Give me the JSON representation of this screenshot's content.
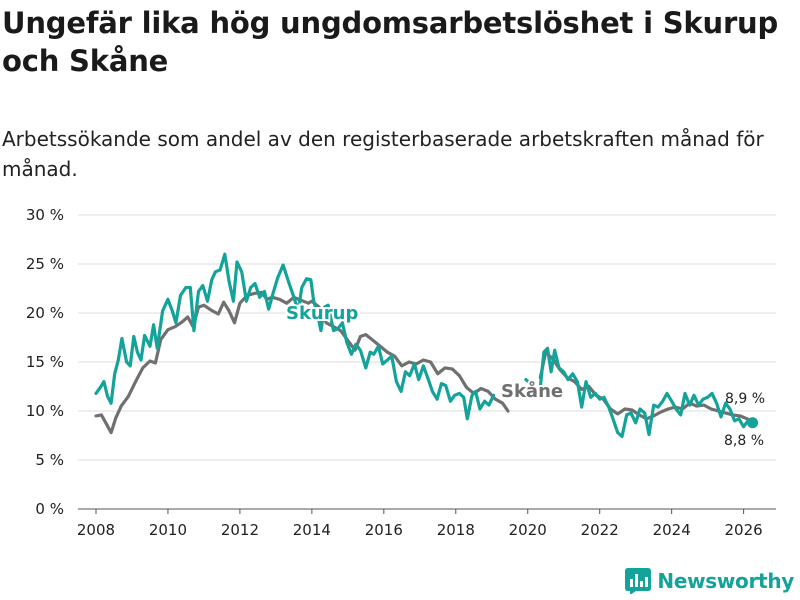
{
  "title": "Ungefär lika hög ungdomsarbetslöshet i Skurup och Skåne",
  "subtitle": "Arbetssökande som andel av den registerbaserade arbetskraften månad för månad.",
  "brand": "Newsworthy",
  "colors": {
    "skurup": "#14a39a",
    "skane": "#707070",
    "grid": "#dddddd",
    "axis": "#555555",
    "brand": "#14a39a"
  },
  "icons": {
    "logo": "bar-chart-logo-icon"
  },
  "chart_data": {
    "type": "line",
    "title": "Ungefär lika hög ungdomsarbetslöshet i Skurup och Skåne",
    "xlabel": "",
    "ylabel": "",
    "xlim": [
      2007.5,
      2026.9
    ],
    "ylim": [
      0,
      30
    ],
    "yticks": [
      0,
      5,
      10,
      15,
      20,
      25,
      30
    ],
    "ytick_labels": [
      "0 %",
      "5 %",
      "10 %",
      "15 %",
      "20 %",
      "25 %",
      "30 %"
    ],
    "xticks": [
      2008,
      2010,
      2012,
      2014,
      2016,
      2018,
      2020,
      2022,
      2024,
      2026
    ],
    "xtick_labels": [
      "2008",
      "2010",
      "2012",
      "2014",
      "2016",
      "2018",
      "2020",
      "2022",
      "2024",
      "2026"
    ],
    "grid": true,
    "series": [
      {
        "name": "Skåne",
        "label": "Skåne",
        "end_label": "8,9 %",
        "points": [
          [
            2008.0,
            9.5
          ],
          [
            2008.15,
            9.6
          ],
          [
            2008.3,
            8.6
          ],
          [
            2008.42,
            7.8
          ],
          [
            2008.55,
            9.3
          ],
          [
            2008.7,
            10.5
          ],
          [
            2008.9,
            11.5
          ],
          [
            2009.1,
            13.0
          ],
          [
            2009.3,
            14.4
          ],
          [
            2009.5,
            15.1
          ],
          [
            2009.65,
            14.9
          ],
          [
            2009.8,
            17.3
          ],
          [
            2010.0,
            18.3
          ],
          [
            2010.2,
            18.6
          ],
          [
            2010.4,
            19.1
          ],
          [
            2010.55,
            19.6
          ],
          [
            2010.7,
            18.6
          ],
          [
            2010.85,
            20.6
          ],
          [
            2011.0,
            20.8
          ],
          [
            2011.2,
            20.3
          ],
          [
            2011.4,
            19.9
          ],
          [
            2011.55,
            21.1
          ],
          [
            2011.7,
            20.2
          ],
          [
            2011.85,
            19.0
          ],
          [
            2012.0,
            21.0
          ],
          [
            2012.2,
            21.8
          ],
          [
            2012.4,
            22.0
          ],
          [
            2012.6,
            22.1
          ],
          [
            2012.75,
            21.4
          ],
          [
            2012.9,
            21.6
          ],
          [
            2013.1,
            21.4
          ],
          [
            2013.3,
            21.0
          ],
          [
            2013.5,
            21.6
          ],
          [
            2013.7,
            21.3
          ],
          [
            2013.9,
            21.0
          ],
          [
            2014.0,
            21.2
          ],
          [
            2014.2,
            20.6
          ],
          [
            2014.4,
            19.0
          ],
          [
            2014.6,
            18.6
          ],
          [
            2014.8,
            18.2
          ],
          [
            2015.0,
            17.2
          ],
          [
            2015.2,
            16.2
          ],
          [
            2015.35,
            17.6
          ],
          [
            2015.5,
            17.8
          ],
          [
            2015.7,
            17.2
          ],
          [
            2015.9,
            16.6
          ],
          [
            2016.1,
            16.0
          ],
          [
            2016.3,
            15.6
          ],
          [
            2016.5,
            14.6
          ],
          [
            2016.7,
            15.0
          ],
          [
            2016.9,
            14.8
          ],
          [
            2017.1,
            15.2
          ],
          [
            2017.3,
            15.0
          ],
          [
            2017.5,
            13.8
          ],
          [
            2017.7,
            14.4
          ],
          [
            2017.9,
            14.3
          ],
          [
            2018.1,
            13.6
          ],
          [
            2018.3,
            12.4
          ],
          [
            2018.5,
            11.8
          ],
          [
            2018.7,
            12.3
          ],
          [
            2018.9,
            12.0
          ],
          [
            2019.1,
            11.2
          ],
          [
            2019.3,
            10.8
          ],
          [
            2019.45,
            10.0
          ]
        ],
        "points_b": [
          [
            2020.35,
            13.4
          ],
          [
            2020.5,
            16.0
          ],
          [
            2020.7,
            15.3
          ],
          [
            2020.9,
            14.2
          ],
          [
            2021.1,
            13.4
          ],
          [
            2021.3,
            13.0
          ],
          [
            2021.5,
            12.2
          ],
          [
            2021.7,
            12.5
          ],
          [
            2021.9,
            11.6
          ],
          [
            2022.1,
            11.2
          ],
          [
            2022.3,
            10.2
          ],
          [
            2022.5,
            9.7
          ],
          [
            2022.7,
            10.2
          ],
          [
            2022.9,
            10.1
          ],
          [
            2023.1,
            9.6
          ],
          [
            2023.3,
            9.2
          ],
          [
            2023.5,
            9.5
          ],
          [
            2023.7,
            9.9
          ],
          [
            2023.9,
            10.2
          ],
          [
            2024.1,
            10.4
          ],
          [
            2024.3,
            10.2
          ],
          [
            2024.5,
            10.8
          ],
          [
            2024.7,
            10.5
          ],
          [
            2024.9,
            10.6
          ],
          [
            2025.1,
            10.2
          ],
          [
            2025.3,
            10.0
          ],
          [
            2025.5,
            9.8
          ],
          [
            2025.7,
            9.6
          ],
          [
            2025.9,
            9.5
          ],
          [
            2026.1,
            9.2
          ],
          [
            2026.25,
            8.9
          ]
        ]
      },
      {
        "name": "Skurup",
        "label": "Skurup",
        "end_label": "8,8 %",
        "points": [
          [
            2008.0,
            11.8
          ],
          [
            2008.12,
            12.4
          ],
          [
            2008.22,
            13.0
          ],
          [
            2008.32,
            11.5
          ],
          [
            2008.42,
            10.8
          ],
          [
            2008.52,
            13.8
          ],
          [
            2008.62,
            15.2
          ],
          [
            2008.72,
            17.4
          ],
          [
            2008.85,
            15.0
          ],
          [
            2008.95,
            14.6
          ],
          [
            2009.05,
            17.6
          ],
          [
            2009.15,
            16.0
          ],
          [
            2009.25,
            15.2
          ],
          [
            2009.35,
            17.7
          ],
          [
            2009.5,
            16.6
          ],
          [
            2009.6,
            18.8
          ],
          [
            2009.7,
            16.4
          ],
          [
            2009.85,
            20.2
          ],
          [
            2010.0,
            21.4
          ],
          [
            2010.12,
            20.2
          ],
          [
            2010.22,
            19.0
          ],
          [
            2010.35,
            21.8
          ],
          [
            2010.5,
            22.6
          ],
          [
            2010.62,
            22.6
          ],
          [
            2010.72,
            18.2
          ],
          [
            2010.85,
            22.2
          ],
          [
            2010.97,
            22.8
          ],
          [
            2011.1,
            21.2
          ],
          [
            2011.22,
            23.4
          ],
          [
            2011.32,
            24.2
          ],
          [
            2011.45,
            24.4
          ],
          [
            2011.58,
            26.0
          ],
          [
            2011.7,
            23.2
          ],
          [
            2011.82,
            21.2
          ],
          [
            2011.92,
            25.2
          ],
          [
            2012.05,
            24.2
          ],
          [
            2012.18,
            21.2
          ],
          [
            2012.3,
            22.6
          ],
          [
            2012.42,
            23.0
          ],
          [
            2012.55,
            21.6
          ],
          [
            2012.68,
            22.2
          ],
          [
            2012.8,
            20.4
          ],
          [
            2012.92,
            22.0
          ],
          [
            2013.05,
            23.6
          ],
          [
            2013.2,
            24.9
          ],
          [
            2013.35,
            23.2
          ],
          [
            2013.5,
            21.6
          ],
          [
            2013.62,
            20.2
          ],
          [
            2013.72,
            22.6
          ],
          [
            2013.85,
            23.5
          ],
          [
            2013.97,
            23.4
          ],
          [
            2014.05,
            21.2
          ],
          [
            2014.15,
            20.0
          ],
          [
            2014.25,
            18.2
          ],
          [
            2014.35,
            20.6
          ],
          [
            2014.45,
            20.8
          ],
          [
            2014.6,
            18.2
          ],
          [
            2014.72,
            18.4
          ],
          [
            2014.85,
            19.0
          ],
          [
            2014.97,
            17.0
          ],
          [
            2015.1,
            15.8
          ],
          [
            2015.22,
            16.8
          ],
          [
            2015.35,
            16.2
          ],
          [
            2015.5,
            14.4
          ],
          [
            2015.62,
            16.0
          ],
          [
            2015.72,
            15.8
          ],
          [
            2015.85,
            16.6
          ],
          [
            2015.97,
            14.8
          ],
          [
            2016.1,
            15.2
          ],
          [
            2016.22,
            15.6
          ],
          [
            2016.35,
            13.0
          ],
          [
            2016.48,
            12.0
          ],
          [
            2016.6,
            14.0
          ],
          [
            2016.72,
            13.6
          ],
          [
            2016.85,
            14.8
          ],
          [
            2016.97,
            13.2
          ],
          [
            2017.1,
            14.6
          ],
          [
            2017.22,
            13.4
          ],
          [
            2017.35,
            12.0
          ],
          [
            2017.48,
            11.2
          ],
          [
            2017.6,
            12.8
          ],
          [
            2017.72,
            12.6
          ],
          [
            2017.85,
            11.0
          ],
          [
            2017.97,
            11.6
          ],
          [
            2018.1,
            11.8
          ],
          [
            2018.22,
            11.4
          ],
          [
            2018.32,
            9.2
          ],
          [
            2018.45,
            11.6
          ],
          [
            2018.55,
            12.0
          ],
          [
            2018.67,
            10.2
          ],
          [
            2018.8,
            11.0
          ],
          [
            2018.92,
            10.6
          ],
          [
            2019.05,
            11.6
          ]
        ],
        "points_b": [
          [
            2019.95,
            13.2
          ],
          [
            2020.08,
            12.8
          ]
        ],
        "points_c": [
          [
            2020.35,
            12.4
          ],
          [
            2020.45,
            16.0
          ],
          [
            2020.55,
            16.4
          ],
          [
            2020.65,
            14.0
          ],
          [
            2020.75,
            16.2
          ],
          [
            2020.87,
            14.4
          ],
          [
            2021.0,
            14.0
          ],
          [
            2021.12,
            13.2
          ],
          [
            2021.25,
            13.8
          ],
          [
            2021.38,
            13.0
          ],
          [
            2021.5,
            10.4
          ],
          [
            2021.62,
            13.0
          ],
          [
            2021.75,
            11.4
          ],
          [
            2021.88,
            11.8
          ],
          [
            2022.0,
            11.2
          ],
          [
            2022.12,
            11.4
          ],
          [
            2022.25,
            10.4
          ],
          [
            2022.37,
            9.2
          ],
          [
            2022.5,
            7.8
          ],
          [
            2022.62,
            7.4
          ],
          [
            2022.75,
            9.6
          ],
          [
            2022.87,
            9.8
          ],
          [
            2023.0,
            8.8
          ],
          [
            2023.12,
            10.2
          ],
          [
            2023.25,
            9.8
          ],
          [
            2023.37,
            7.6
          ],
          [
            2023.5,
            10.6
          ],
          [
            2023.62,
            10.4
          ],
          [
            2023.75,
            11.0
          ],
          [
            2023.87,
            11.8
          ],
          [
            2024.0,
            11.0
          ],
          [
            2024.12,
            10.2
          ],
          [
            2024.25,
            9.6
          ],
          [
            2024.37,
            11.8
          ],
          [
            2024.5,
            10.6
          ],
          [
            2024.62,
            11.6
          ],
          [
            2024.75,
            10.6
          ],
          [
            2024.87,
            11.2
          ],
          [
            2025.0,
            11.4
          ],
          [
            2025.12,
            11.8
          ],
          [
            2025.25,
            10.8
          ],
          [
            2025.37,
            9.4
          ],
          [
            2025.5,
            10.8
          ],
          [
            2025.62,
            10.2
          ],
          [
            2025.75,
            9.0
          ],
          [
            2025.87,
            9.2
          ],
          [
            2026.0,
            8.4
          ],
          [
            2026.12,
            9.0
          ],
          [
            2026.25,
            8.8
          ]
        ]
      }
    ]
  }
}
